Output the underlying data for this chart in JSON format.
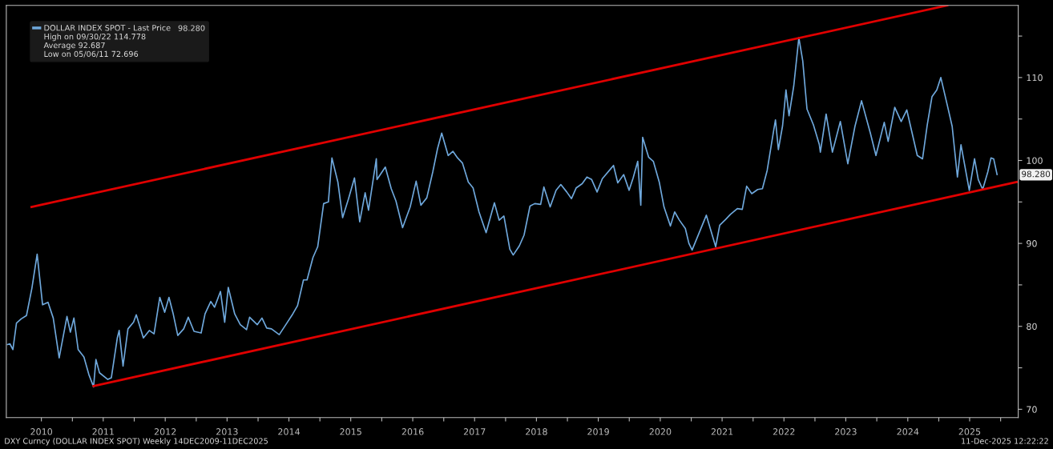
{
  "chart_data": {
    "type": "line",
    "x": [
      "2009-12-14",
      "2009-12-28",
      "2010-01-15",
      "2010-02-05",
      "2010-03-05",
      "2010-04-05",
      "2010-05-07",
      "2010-06-07",
      "2010-07-09",
      "2010-08-10",
      "2010-09-10",
      "2010-10-15",
      "2010-11-30",
      "2010-12-20",
      "2011-01-10",
      "2011-02-04",
      "2011-03-10",
      "2011-04-08",
      "2011-05-06",
      "2011-05-20",
      "2011-06-10",
      "2011-07-29",
      "2011-08-19",
      "2011-09-23",
      "2011-10-04",
      "2011-10-27",
      "2011-11-25",
      "2011-12-28",
      "2012-01-13",
      "2012-02-24",
      "2012-03-30",
      "2012-04-27",
      "2012-05-31",
      "2012-06-29",
      "2012-07-24",
      "2012-08-17",
      "2012-09-14",
      "2012-10-19",
      "2012-11-15",
      "2012-12-19",
      "2013-01-30",
      "2013-02-22",
      "2013-03-28",
      "2013-04-19",
      "2013-05-24",
      "2013-06-18",
      "2013-07-09",
      "2013-08-16",
      "2013-09-18",
      "2013-10-25",
      "2013-11-12",
      "2013-12-27",
      "2014-01-24",
      "2014-02-21",
      "2014-03-21",
      "2014-05-06",
      "2014-06-20",
      "2014-07-25",
      "2014-08-22",
      "2014-09-26",
      "2014-10-17",
      "2014-11-21",
      "2014-12-19",
      "2015-01-23",
      "2015-02-20",
      "2015-03-13",
      "2015-04-17",
      "2015-05-15",
      "2015-06-19",
      "2015-07-24",
      "2015-08-24",
      "2015-09-25",
      "2015-10-15",
      "2015-11-30",
      "2015-12-04",
      "2016-01-22",
      "2016-02-26",
      "2016-03-25",
      "2016-05-03",
      "2016-06-17",
      "2016-07-22",
      "2016-08-19",
      "2016-09-23",
      "2016-10-28",
      "2016-11-25",
      "2016-12-20",
      "2017-01-27",
      "2017-02-24",
      "2017-03-24",
      "2017-04-21",
      "2017-05-26",
      "2017-06-23",
      "2017-07-28",
      "2017-09-08",
      "2017-10-27",
      "2017-11-24",
      "2017-12-22",
      "2018-01-26",
      "2018-02-15",
      "2018-03-23",
      "2018-04-20",
      "2018-05-25",
      "2018-06-22",
      "2018-07-27",
      "2018-08-15",
      "2018-09-21",
      "2018-10-26",
      "2018-11-23",
      "2018-12-28",
      "2019-01-25",
      "2019-02-22",
      "2019-03-29",
      "2019-04-26",
      "2019-05-24",
      "2019-06-25",
      "2019-07-26",
      "2019-09-30",
      "2019-10-25",
      "2019-11-29",
      "2019-12-31",
      "2020-01-24",
      "2020-02-20",
      "2020-03-09",
      "2020-03-20",
      "2020-04-24",
      "2020-05-22",
      "2020-06-26",
      "2020-07-24",
      "2020-08-31",
      "2020-09-25",
      "2020-10-23",
      "2020-11-27",
      "2020-12-18",
      "2021-01-06",
      "2021-03-31",
      "2021-05-25",
      "2021-06-18",
      "2021-07-23",
      "2021-08-20",
      "2021-09-30",
      "2021-10-29",
      "2021-11-24",
      "2021-12-24",
      "2022-01-28",
      "2022-02-25",
      "2022-03-25",
      "2022-04-29",
      "2022-05-13",
      "2022-05-30",
      "2022-06-24",
      "2022-07-14",
      "2022-08-01",
      "2022-08-29",
      "2022-09-28",
      "2022-10-21",
      "2022-11-15",
      "2022-12-23",
      "2023-01-27",
      "2023-02-02",
      "2023-03-08",
      "2023-04-14",
      "2023-05-31",
      "2023-07-14",
      "2023-08-25",
      "2023-10-03",
      "2023-11-24",
      "2023-12-27",
      "2024-02-14",
      "2024-03-08",
      "2024-04-16",
      "2024-05-24",
      "2024-06-26",
      "2024-08-27",
      "2024-09-27",
      "2024-10-25",
      "2024-11-22",
      "2024-12-20",
      "2025-01-13",
      "2025-02-21",
      "2025-03-21",
      "2025-04-21",
      "2025-05-12",
      "2025-06-30",
      "2025-07-31",
      "2025-08-22",
      "2025-09-17",
      "2025-10-17",
      "2025-11-05",
      "2025-11-21",
      "2025-12-11"
    ],
    "series": [
      {
        "name": "DOLLAR INDEX SPOT - Last Price",
        "color": "#6fa8dc",
        "values": [
          77.8,
          77.9,
          77.2,
          80.4,
          80.9,
          81.3,
          84.6,
          88.7,
          82.6,
          82.9,
          81.0,
          76.2,
          81.2,
          79.3,
          81.0,
          77.2,
          76.3,
          74.2,
          72.7,
          76.0,
          74.4,
          73.6,
          73.8,
          78.6,
          79.5,
          75.2,
          79.7,
          80.5,
          81.4,
          78.6,
          79.5,
          79.1,
          83.5,
          81.7,
          83.5,
          81.6,
          78.9,
          79.7,
          81.1,
          79.4,
          79.2,
          81.5,
          83.0,
          82.3,
          84.2,
          80.5,
          84.7,
          81.5,
          80.2,
          79.6,
          81.1,
          80.2,
          81.0,
          79.8,
          79.7,
          79.0,
          80.4,
          81.5,
          82.5,
          85.6,
          85.6,
          88.3,
          89.6,
          94.8,
          95.0,
          100.3,
          97.4,
          93.1,
          95.4,
          97.9,
          92.6,
          96.1,
          94.0,
          100.2,
          97.7,
          99.2,
          96.6,
          95.1,
          91.9,
          94.4,
          97.5,
          94.6,
          95.5,
          98.6,
          101.4,
          103.3,
          100.6,
          101.1,
          100.3,
          99.7,
          97.4,
          96.7,
          93.8,
          91.3,
          94.9,
          92.8,
          93.3,
          89.3,
          88.6,
          89.7,
          91.0,
          94.5,
          94.8,
          94.7,
          96.8,
          94.4,
          96.4,
          97.1,
          96.2,
          95.4,
          96.7,
          97.2,
          98.0,
          97.7,
          96.2,
          97.8,
          99.4,
          97.3,
          98.3,
          96.4,
          97.9,
          99.9,
          94.6,
          102.8,
          100.4,
          99.9,
          97.4,
          94.4,
          92.1,
          93.8,
          92.8,
          91.8,
          90.0,
          89.2,
          93.4,
          89.6,
          92.2,
          92.9,
          93.5,
          94.2,
          94.1,
          96.9,
          96.0,
          96.5,
          96.6,
          98.8,
          103.2,
          104.9,
          101.3,
          104.2,
          108.5,
          105.4,
          109.0,
          114.8,
          112.0,
          106.2,
          104.3,
          101.9,
          101.0,
          105.6,
          101.0,
          104.7,
          99.6,
          104.1,
          107.2,
          103.3,
          100.6,
          104.6,
          102.3,
          106.4,
          104.7,
          106.1,
          100.6,
          100.2,
          104.3,
          107.7,
          108.5,
          110.0,
          106.6,
          104.1,
          98.0,
          101.9,
          96.4,
          100.2,
          97.7,
          96.5,
          98.6,
          100.3,
          100.2,
          98.3
        ]
      },
      {
        "type": "line",
        "color": "#e00000",
        "x": [
          "2011-05-06",
          "2026-04-05"
        ],
        "values": [
          72.8,
          97.4
        ]
      },
      {
        "type": "line",
        "color": "#e00000",
        "x": [
          "2010-05-05",
          "2025-02-20"
        ],
        "values": [
          94.4,
          118.7
        ]
      }
    ],
    "xlim": [
      "2009-12-07",
      "2026-04-15"
    ],
    "xticks": [
      {
        "value": "2010-07-02",
        "label": "2010"
      },
      {
        "value": "2011-01-01",
        "label": null
      },
      {
        "value": "2011-07-02",
        "label": "2011"
      },
      {
        "value": "2012-01-01",
        "label": null
      },
      {
        "value": "2012-07-02",
        "label": "2012"
      },
      {
        "value": "2013-01-01",
        "label": null
      },
      {
        "value": "2013-07-02",
        "label": "2013"
      },
      {
        "value": "2014-01-01",
        "label": null
      },
      {
        "value": "2014-07-02",
        "label": "2014"
      },
      {
        "value": "2015-01-01",
        "label": null
      },
      {
        "value": "2015-07-02",
        "label": "2015"
      },
      {
        "value": "2016-01-01",
        "label": null
      },
      {
        "value": "2016-07-02",
        "label": "2016"
      },
      {
        "value": "2017-01-01",
        "label": null
      },
      {
        "value": "2017-07-02",
        "label": "2017"
      },
      {
        "value": "2018-01-01",
        "label": null
      },
      {
        "value": "2018-07-02",
        "label": "2018"
      },
      {
        "value": "2019-01-01",
        "label": null
      },
      {
        "value": "2019-07-02",
        "label": "2019"
      },
      {
        "value": "2020-01-01",
        "label": null
      },
      {
        "value": "2020-07-02",
        "label": "2020"
      },
      {
        "value": "2021-01-01",
        "label": null
      },
      {
        "value": "2021-07-02",
        "label": "2021"
      },
      {
        "value": "2022-01-01",
        "label": null
      },
      {
        "value": "2022-07-02",
        "label": "2022"
      },
      {
        "value": "2023-01-01",
        "label": null
      },
      {
        "value": "2023-07-02",
        "label": "2023"
      },
      {
        "value": "2024-01-01",
        "label": null
      },
      {
        "value": "2024-07-02",
        "label": "2024"
      },
      {
        "value": "2025-01-01",
        "label": null
      },
      {
        "value": "2025-07-02",
        "label": "2025"
      },
      {
        "value": "2026-01-01",
        "label": null
      }
    ],
    "ylim": [
      69,
      118.7
    ],
    "yticks": [
      70,
      {
        "value": 75,
        "label": null
      },
      80,
      {
        "value": 85,
        "label": null
      },
      90,
      {
        "value": 95,
        "label": null
      },
      100,
      {
        "value": 105,
        "label": null
      },
      110,
      {
        "value": 115,
        "label": null
      }
    ],
    "legend": "top left",
    "grid": false,
    "annotations": [
      "98.280",
      "High on 09/30/22 114.778",
      "Average 92.687",
      "Low on 05/06/11 72.696",
      "DXY Curncy (DOLLAR INDEX SPOT) Weekly 14DEC2009-11DEC2025",
      "11-Dec-2025 12:22:22",
      {
        "text": "98.280",
        "x": "2025-12-11",
        "y": 98.28
      }
    ]
  }
}
